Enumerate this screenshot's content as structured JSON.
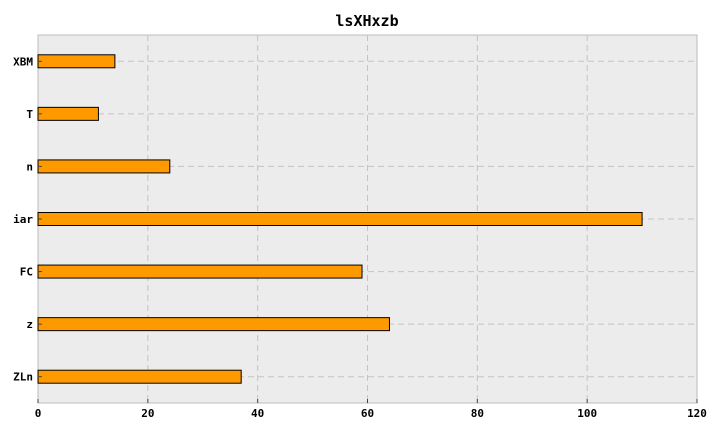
{
  "chart_data": {
    "type": "bar",
    "orientation": "horizontal",
    "title": "lsXHxzb",
    "xlabel": "",
    "ylabel": "",
    "categories": [
      "ZLn",
      "z",
      "FC",
      "iar",
      "n",
      "T",
      "XBM"
    ],
    "values": [
      37,
      64,
      59,
      110,
      24,
      11,
      14
    ],
    "xlim": [
      0,
      120
    ],
    "xticks": [
      0,
      20,
      40,
      60,
      80,
      100,
      120
    ],
    "grid": true,
    "legend": "none",
    "colors": {
      "bar": "#ff9900",
      "plot_background": "#ececec"
    }
  }
}
